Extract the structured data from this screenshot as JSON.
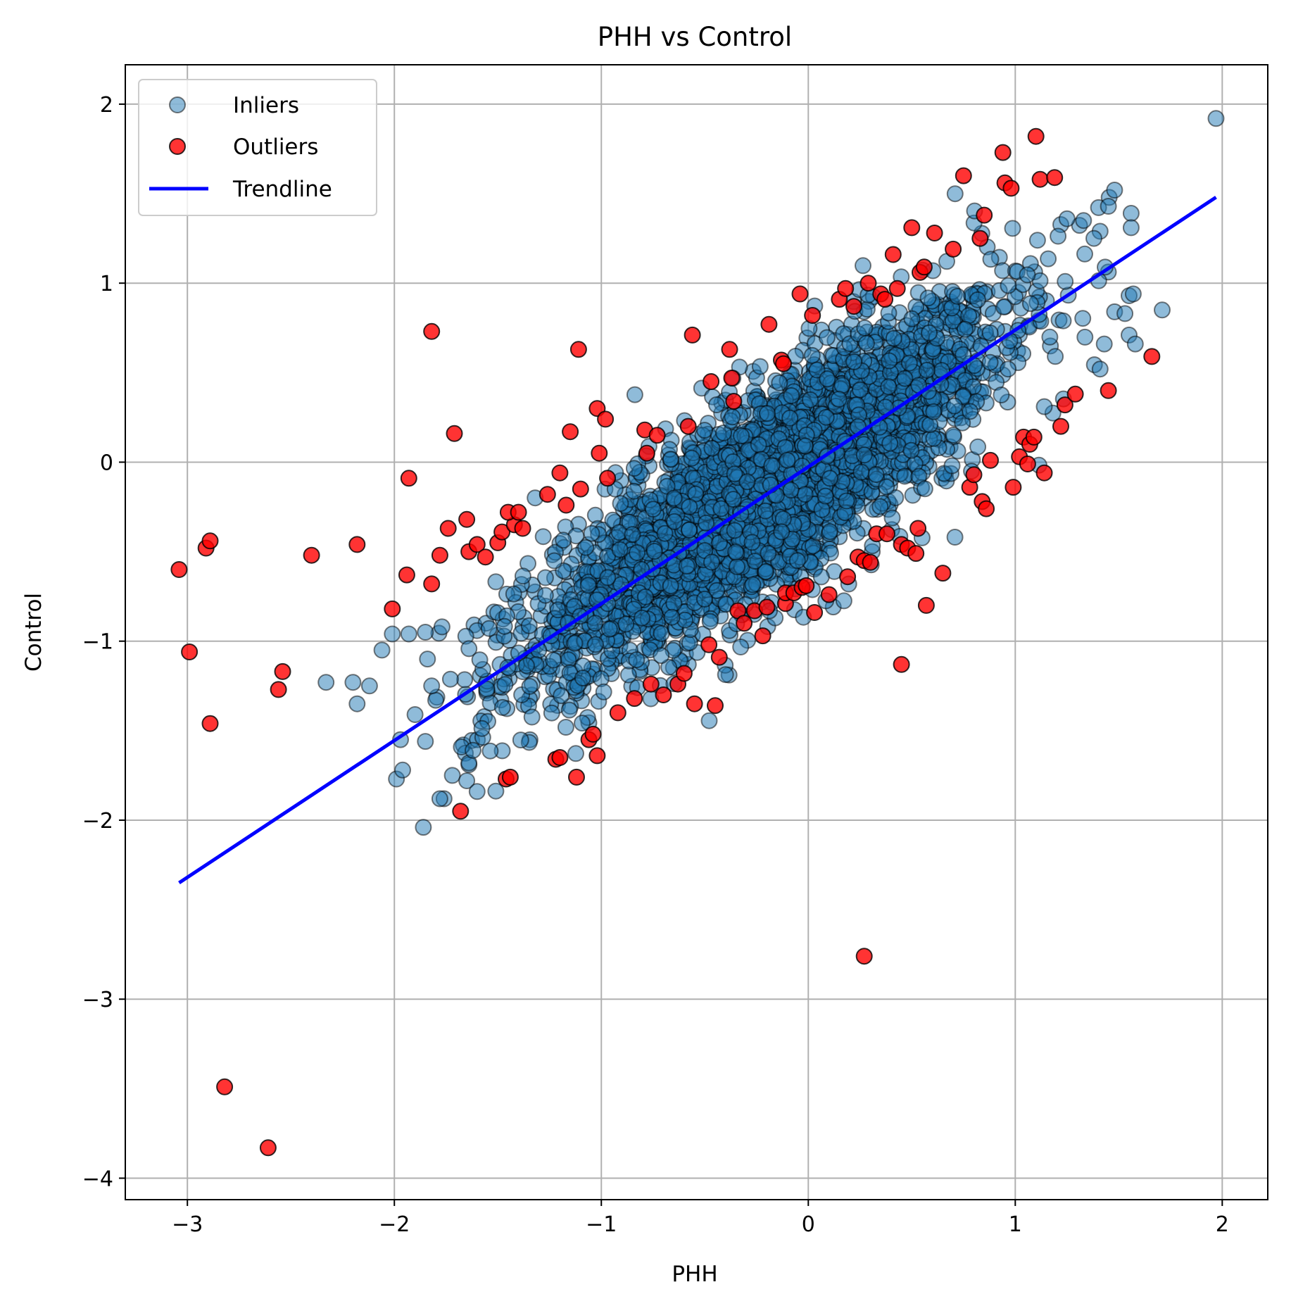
{
  "chart_data": {
    "type": "scatter",
    "title": "PHH vs Control",
    "xlabel": "PHH",
    "ylabel": "Control",
    "xlim": [
      -3.3,
      2.22
    ],
    "ylim": [
      -4.12,
      2.22
    ],
    "xticks": [
      -3,
      -2,
      -1,
      0,
      1,
      2
    ],
    "yticks": [
      -4,
      -3,
      -2,
      -1,
      0,
      1,
      2
    ],
    "grid": true,
    "legend_position": "top-left",
    "legend": [
      "Inliers",
      "Outliers",
      "Trendline"
    ],
    "colors": {
      "inliers": "#1f77b4",
      "outliers": "#ff0000",
      "trendline": "#0000ff",
      "edge": "#000000"
    },
    "trendline": {
      "x": [
        -3.04,
        1.97
      ],
      "y": [
        -2.35,
        1.48
      ]
    },
    "inliers_cloud": {
      "description_points": "dense cloud along trendline",
      "count": 3500,
      "x_range": [
        -1.85,
        1.6
      ],
      "slope": 0.76,
      "intercept": 0.0,
      "spread": 0.28
    },
    "inliers_sparse": [
      [
        1.97,
        1.92
      ],
      [
        1.48,
        1.52
      ],
      [
        1.56,
        1.39
      ],
      [
        1.56,
        1.31
      ],
      [
        1.71,
        0.85
      ],
      [
        1.55,
        0.93
      ],
      [
        1.57,
        0.94
      ],
      [
        1.48,
        0.84
      ],
      [
        1.53,
        0.83
      ],
      [
        1.55,
        0.71
      ],
      [
        1.58,
        0.66
      ],
      [
        1.33,
        1.35
      ],
      [
        1.25,
        1.36
      ],
      [
        1.41,
        1.29
      ],
      [
        1.38,
        1.25
      ],
      [
        1.43,
        0.66
      ],
      [
        1.41,
        0.52
      ],
      [
        1.14,
        0.31
      ],
      [
        -2.33,
        -1.23
      ],
      [
        -2.2,
        -1.23
      ],
      [
        -2.12,
        -1.25
      ],
      [
        -2.18,
        -1.35
      ],
      [
        -2.06,
        -1.05
      ],
      [
        -2.01,
        -0.96
      ],
      [
        -1.93,
        -0.96
      ],
      [
        -1.85,
        -0.95
      ],
      [
        -1.77,
        -0.92
      ],
      [
        -1.99,
        -1.77
      ],
      [
        -1.96,
        -1.72
      ],
      [
        -1.86,
        -2.04
      ],
      [
        -1.76,
        -1.88
      ],
      [
        -1.78,
        -1.88
      ],
      [
        -1.72,
        -1.75
      ],
      [
        -1.65,
        -1.78
      ],
      [
        -1.6,
        -1.84
      ],
      [
        -1.64,
        -1.68
      ],
      [
        -1.62,
        -1.61
      ],
      [
        -1.97,
        -1.55
      ],
      [
        -1.9,
        -1.41
      ],
      [
        -1.85,
        -1.56
      ],
      [
        -1.8,
        -1.33
      ],
      [
        -1.82,
        -1.25
      ],
      [
        -1.84,
        -1.1
      ]
    ],
    "outliers": [
      [
        -3.04,
        -0.6
      ],
      [
        -2.99,
        -1.06
      ],
      [
        -2.91,
        -0.48
      ],
      [
        -2.89,
        -0.44
      ],
      [
        -2.89,
        -1.46
      ],
      [
        -2.82,
        -3.49
      ],
      [
        -2.61,
        -3.83
      ],
      [
        -2.56,
        -1.27
      ],
      [
        -2.54,
        -1.17
      ],
      [
        -2.4,
        -0.52
      ],
      [
        -2.18,
        -0.46
      ],
      [
        -2.01,
        -0.82
      ],
      [
        -1.94,
        -0.63
      ],
      [
        -1.93,
        -0.09
      ],
      [
        -1.82,
        0.73
      ],
      [
        -1.82,
        -0.68
      ],
      [
        -1.78,
        -0.52
      ],
      [
        -1.74,
        -0.37
      ],
      [
        -1.71,
        0.16
      ],
      [
        -1.68,
        -1.95
      ],
      [
        -1.65,
        -0.32
      ],
      [
        -1.64,
        -0.5
      ],
      [
        -1.6,
        -0.46
      ],
      [
        -1.56,
        -0.53
      ],
      [
        -1.5,
        -0.45
      ],
      [
        -1.48,
        -0.39
      ],
      [
        -1.46,
        -1.77
      ],
      [
        -1.44,
        -1.76
      ],
      [
        -1.42,
        -0.35
      ],
      [
        -1.45,
        -0.28
      ],
      [
        -1.4,
        -0.28
      ],
      [
        -1.38,
        -0.37
      ],
      [
        -1.26,
        -0.18
      ],
      [
        -1.22,
        -1.66
      ],
      [
        -1.2,
        -1.65
      ],
      [
        -1.2,
        -0.06
      ],
      [
        -1.17,
        -0.24
      ],
      [
        -1.15,
        0.17
      ],
      [
        -1.12,
        -1.76
      ],
      [
        -1.11,
        0.63
      ],
      [
        -1.1,
        -0.15
      ],
      [
        -1.06,
        -1.55
      ],
      [
        -1.04,
        -1.52
      ],
      [
        -1.02,
        -1.64
      ],
      [
        -1.02,
        0.3
      ],
      [
        -1.01,
        0.05
      ],
      [
        -0.98,
        0.24
      ],
      [
        -0.97,
        -0.09
      ],
      [
        -0.92,
        -1.4
      ],
      [
        -0.84,
        -1.32
      ],
      [
        -0.79,
        0.18
      ],
      [
        -0.78,
        0.05
      ],
      [
        -0.76,
        -1.24
      ],
      [
        -0.73,
        0.15
      ],
      [
        -0.7,
        -1.3
      ],
      [
        -0.63,
        -1.24
      ],
      [
        -0.6,
        -1.18
      ],
      [
        -0.58,
        0.2
      ],
      [
        -0.56,
        0.71
      ],
      [
        -0.55,
        -1.35
      ],
      [
        -0.48,
        -1.02
      ],
      [
        -0.47,
        0.45
      ],
      [
        -0.45,
        -1.36
      ],
      [
        -0.43,
        -1.09
      ],
      [
        -0.38,
        0.63
      ],
      [
        -0.37,
        0.47
      ],
      [
        -0.36,
        0.34
      ],
      [
        -0.34,
        -0.83
      ],
      [
        -0.31,
        -0.9
      ],
      [
        -0.26,
        -0.83
      ],
      [
        -0.22,
        -0.97
      ],
      [
        -0.2,
        -0.81
      ],
      [
        -0.19,
        0.77
      ],
      [
        -0.13,
        0.57
      ],
      [
        -0.12,
        0.55
      ],
      [
        -0.11,
        -0.79
      ],
      [
        -0.11,
        -0.73
      ],
      [
        -0.07,
        -0.73
      ],
      [
        -0.04,
        0.94
      ],
      [
        -0.03,
        -0.7
      ],
      [
        -0.01,
        -0.69
      ],
      [
        0.02,
        0.82
      ],
      [
        0.03,
        -0.84
      ],
      [
        0.1,
        -0.74
      ],
      [
        0.15,
        0.91
      ],
      [
        0.18,
        0.97
      ],
      [
        0.22,
        0.87
      ],
      [
        0.19,
        -0.64
      ],
      [
        0.24,
        -0.53
      ],
      [
        0.27,
        -0.55
      ],
      [
        0.29,
        1.0
      ],
      [
        0.3,
        -0.56
      ],
      [
        0.27,
        -2.76
      ],
      [
        0.33,
        -0.4
      ],
      [
        0.35,
        0.94
      ],
      [
        0.37,
        0.91
      ],
      [
        0.38,
        -0.4
      ],
      [
        0.41,
        1.16
      ],
      [
        0.43,
        0.97
      ],
      [
        0.45,
        -0.46
      ],
      [
        0.45,
        -1.13
      ],
      [
        0.48,
        -0.48
      ],
      [
        0.5,
        1.31
      ],
      [
        0.52,
        -0.51
      ],
      [
        0.53,
        -0.37
      ],
      [
        0.54,
        1.06
      ],
      [
        0.56,
        1.09
      ],
      [
        0.57,
        -0.8
      ],
      [
        0.61,
        1.28
      ],
      [
        0.65,
        -0.62
      ],
      [
        0.7,
        1.19
      ],
      [
        0.75,
        1.6
      ],
      [
        0.78,
        -0.14
      ],
      [
        0.8,
        -0.07
      ],
      [
        0.83,
        1.25
      ],
      [
        0.84,
        -0.22
      ],
      [
        0.85,
        1.38
      ],
      [
        0.86,
        -0.26
      ],
      [
        0.88,
        0.01
      ],
      [
        0.94,
        1.73
      ],
      [
        0.95,
        1.56
      ],
      [
        0.98,
        1.53
      ],
      [
        0.99,
        -0.14
      ],
      [
        1.02,
        0.03
      ],
      [
        1.04,
        0.14
      ],
      [
        1.06,
        -0.01
      ],
      [
        1.07,
        0.1
      ],
      [
        1.09,
        0.14
      ],
      [
        1.1,
        1.82
      ],
      [
        1.12,
        1.58
      ],
      [
        1.14,
        -0.06
      ],
      [
        1.19,
        1.59
      ],
      [
        1.22,
        0.2
      ],
      [
        1.24,
        0.32
      ],
      [
        1.29,
        0.38
      ],
      [
        1.45,
        0.4
      ],
      [
        1.66,
        0.59
      ]
    ]
  }
}
